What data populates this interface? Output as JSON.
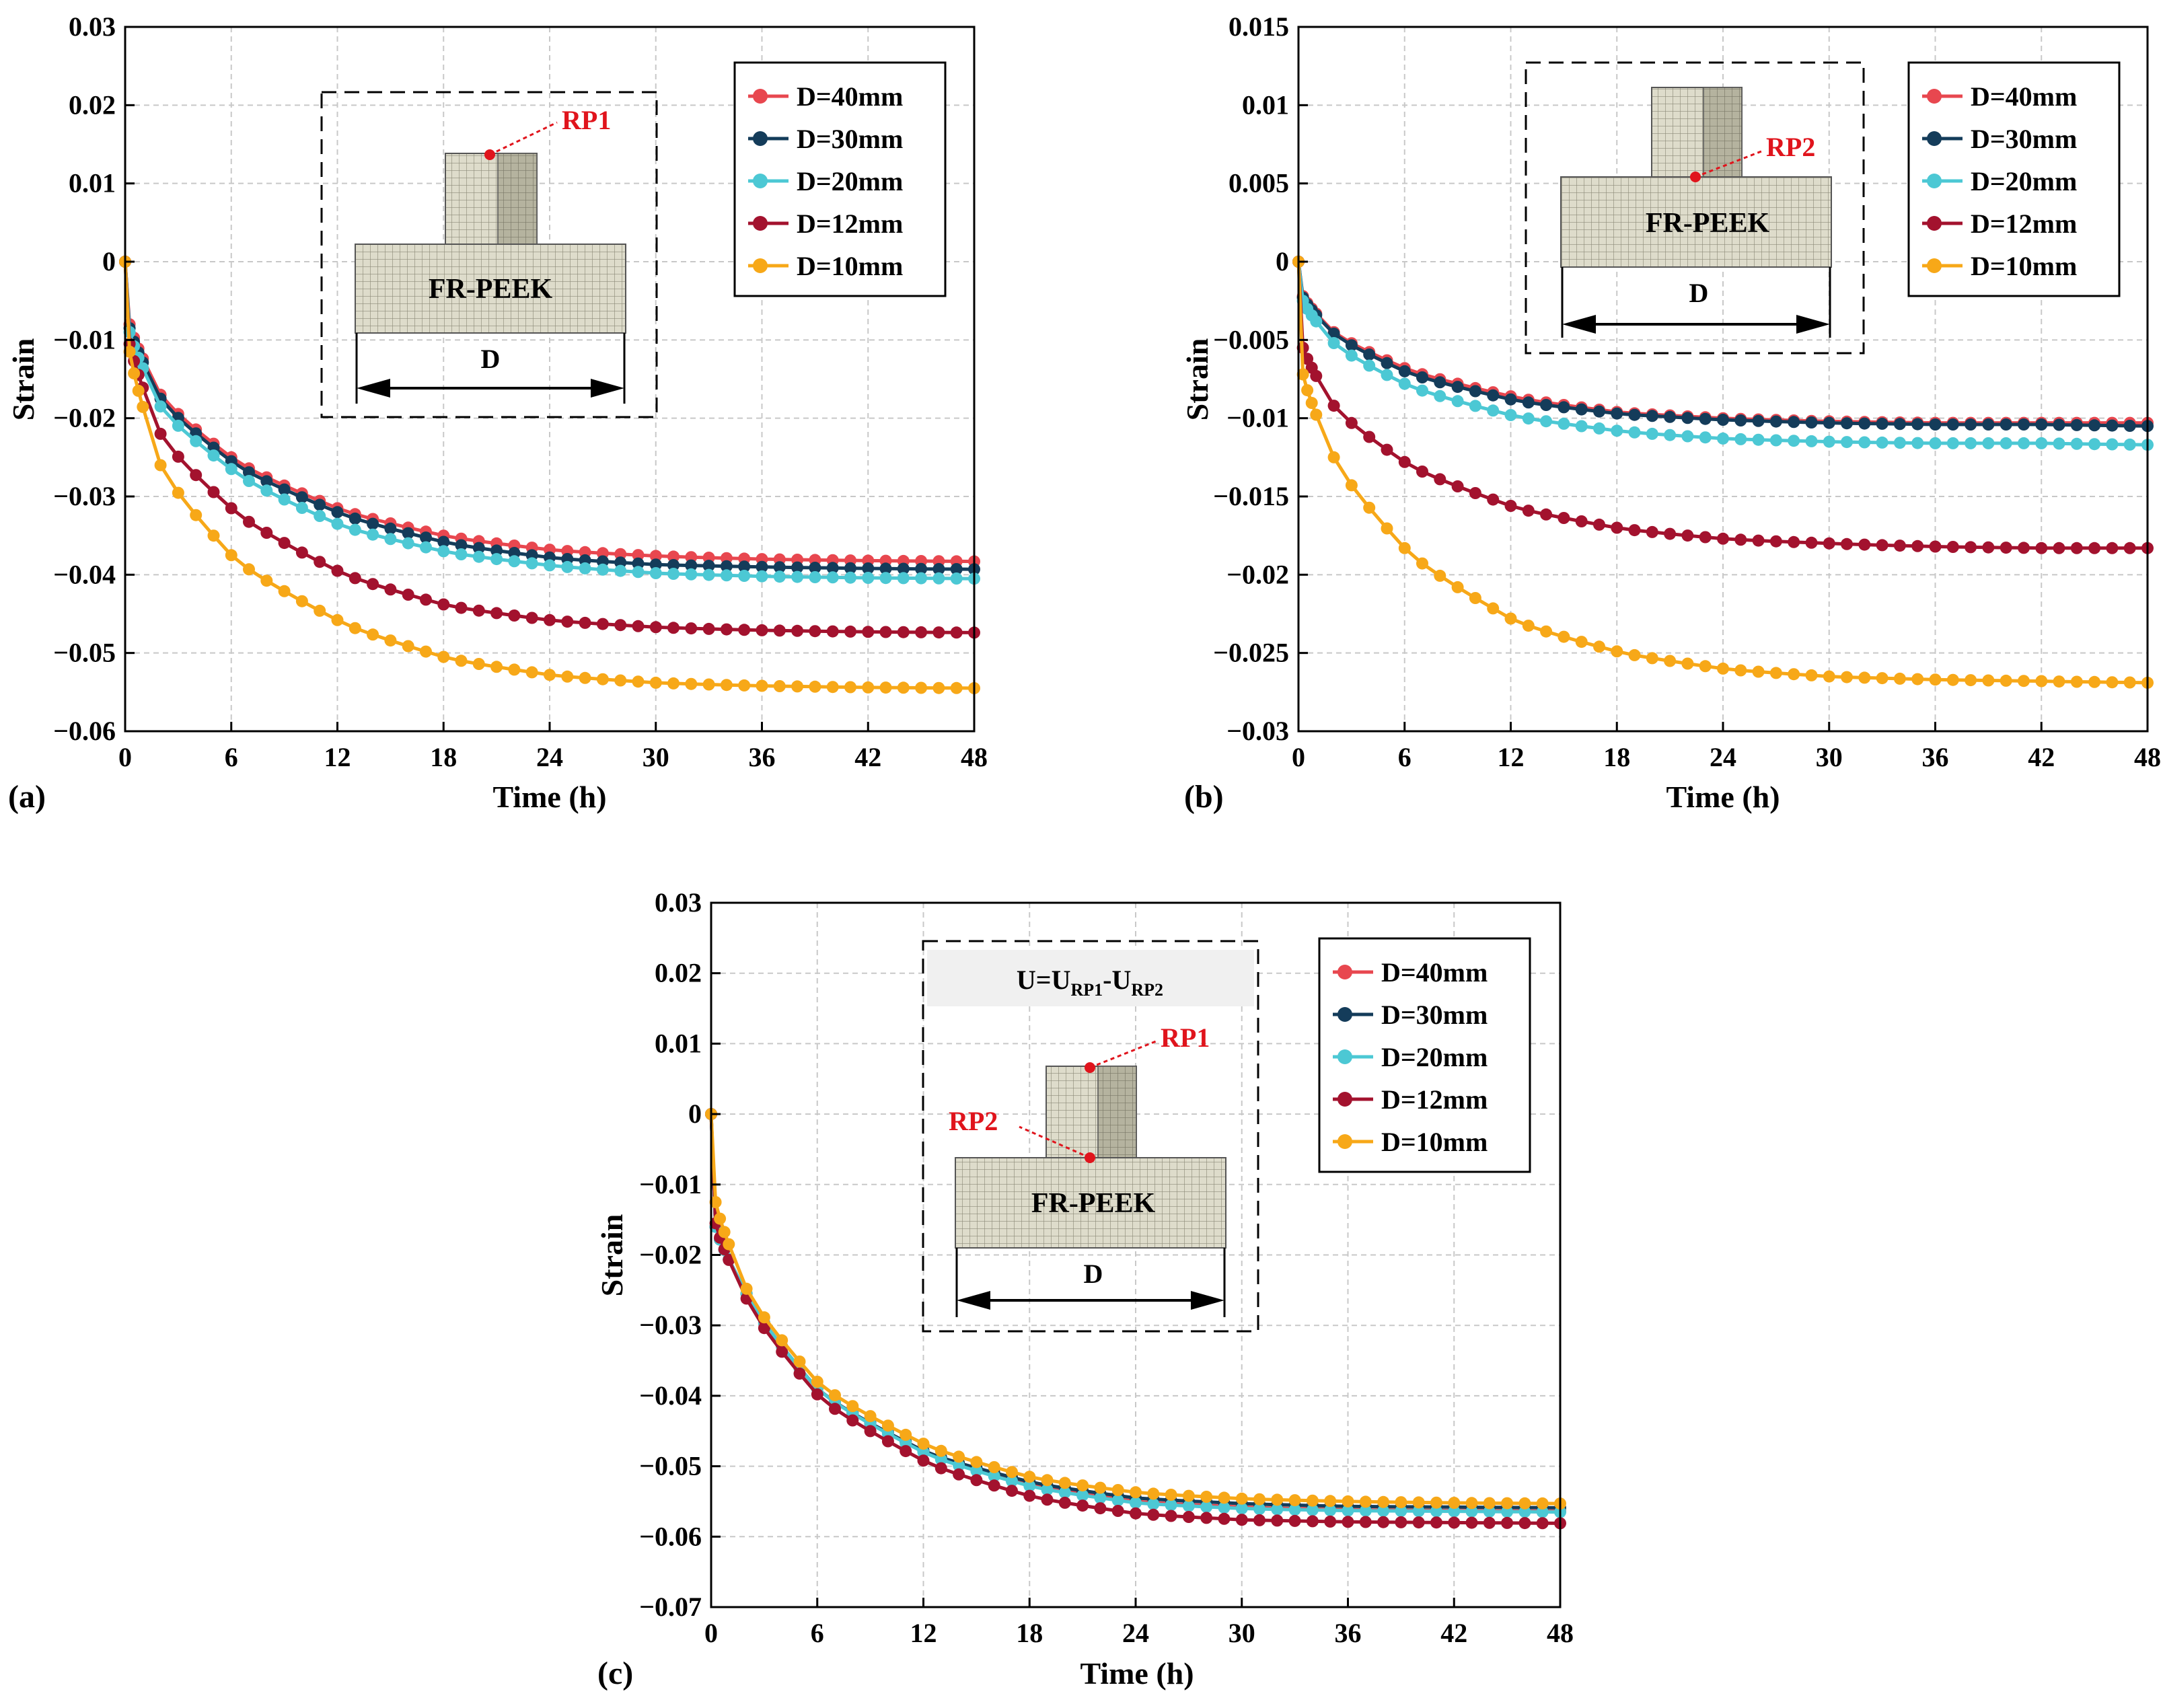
{
  "chart_data": [
    {
      "panel_label": "(a)",
      "type": "line",
      "xlabel": "Time (h)",
      "ylabel": "Strain",
      "xlim": [
        0,
        48
      ],
      "ylim": [
        -0.06,
        0.03
      ],
      "xticks": [
        0,
        6,
        12,
        18,
        24,
        30,
        36,
        42,
        48
      ],
      "xtick_labels": [
        "0",
        "6",
        "12",
        "18",
        "24",
        "30",
        "36",
        "42",
        "48"
      ],
      "yticks": [
        0.03,
        0.02,
        0.01,
        0,
        -0.01,
        -0.02,
        -0.03,
        -0.04,
        -0.05,
        -0.06
      ],
      "ytick_labels": [
        "0.03",
        "0.02",
        "0.01",
        "0",
        "−0.01",
        "−0.02",
        "−0.03",
        "−0.04",
        "−0.05",
        "−0.06"
      ],
      "grid": true,
      "legend": "top-right",
      "series": [
        {
          "name": "D=40mm",
          "color": "#e8474f",
          "points": [
            [
              0,
              0
            ],
            [
              0.25,
              -0.008
            ],
            [
              2,
              -0.017
            ],
            [
              6,
              -0.025
            ],
            [
              12,
              -0.0315
            ],
            [
              18,
              -0.035
            ],
            [
              24,
              -0.0368
            ],
            [
              30,
              -0.0376
            ],
            [
              36,
              -0.038
            ],
            [
              42,
              -0.0382
            ],
            [
              48,
              -0.0383
            ]
          ]
        },
        {
          "name": "D=30mm",
          "color": "#143c5a",
          "points": [
            [
              0,
              0
            ],
            [
              0.25,
              -0.0085
            ],
            [
              2,
              -0.0175
            ],
            [
              6,
              -0.0255
            ],
            [
              12,
              -0.032
            ],
            [
              18,
              -0.0358
            ],
            [
              24,
              -0.0378
            ],
            [
              30,
              -0.0387
            ],
            [
              36,
              -0.039
            ],
            [
              42,
              -0.0392
            ],
            [
              48,
              -0.0393
            ]
          ]
        },
        {
          "name": "D=20mm",
          "color": "#4cc8d4",
          "points": [
            [
              0,
              0
            ],
            [
              0.25,
              -0.009
            ],
            [
              2,
              -0.0185
            ],
            [
              6,
              -0.0265
            ],
            [
              12,
              -0.0335
            ],
            [
              18,
              -0.037
            ],
            [
              24,
              -0.0388
            ],
            [
              30,
              -0.0398
            ],
            [
              36,
              -0.0402
            ],
            [
              42,
              -0.0404
            ],
            [
              48,
              -0.0405
            ]
          ]
        },
        {
          "name": "D=12mm",
          "color": "#a3122e",
          "points": [
            [
              0,
              0
            ],
            [
              0.25,
              -0.0105
            ],
            [
              2,
              -0.022
            ],
            [
              6,
              -0.0315
            ],
            [
              12,
              -0.0395
            ],
            [
              18,
              -0.0438
            ],
            [
              24,
              -0.0458
            ],
            [
              30,
              -0.0467
            ],
            [
              36,
              -0.0471
            ],
            [
              42,
              -0.0473
            ],
            [
              48,
              -0.0474
            ]
          ]
        },
        {
          "name": "D=10mm",
          "color": "#f7a818",
          "points": [
            [
              0,
              0
            ],
            [
              0.25,
              -0.0115
            ],
            [
              2,
              -0.026
            ],
            [
              6,
              -0.0375
            ],
            [
              12,
              -0.0458
            ],
            [
              18,
              -0.0505
            ],
            [
              24,
              -0.0528
            ],
            [
              30,
              -0.0538
            ],
            [
              36,
              -0.0542
            ],
            [
              42,
              -0.0544
            ],
            [
              48,
              -0.0545
            ]
          ]
        }
      ],
      "inset": {
        "text": "FR-PEEK",
        "dimension_label": "D",
        "point_label": "RP1"
      }
    },
    {
      "panel_label": "(b)",
      "type": "line",
      "xlabel": "Time (h)",
      "ylabel": "Strain",
      "xlim": [
        0,
        48
      ],
      "ylim": [
        -0.03,
        0.015
      ],
      "xticks": [
        0,
        6,
        12,
        18,
        24,
        30,
        36,
        42,
        48
      ],
      "xtick_labels": [
        "0",
        "6",
        "12",
        "18",
        "24",
        "30",
        "36",
        "42",
        "48"
      ],
      "yticks": [
        0.015,
        0.01,
        0.005,
        0,
        -0.005,
        -0.01,
        -0.015,
        -0.02,
        -0.025,
        -0.03
      ],
      "ytick_labels": [
        "0.015",
        "0.01",
        "0.005",
        "0",
        "−0.005",
        "−0.01",
        "−0.015",
        "−0.02",
        "−0.025",
        "−0.03"
      ],
      "grid": true,
      "legend": "top-right",
      "series": [
        {
          "name": "D=40mm",
          "color": "#e8474f",
          "points": [
            [
              0,
              0
            ],
            [
              0.25,
              -0.0022
            ],
            [
              2,
              -0.0045
            ],
            [
              6,
              -0.0068
            ],
            [
              12,
              -0.0086
            ],
            [
              18,
              -0.0096
            ],
            [
              24,
              -0.01
            ],
            [
              30,
              -0.0102
            ],
            [
              36,
              -0.0103
            ],
            [
              42,
              -0.0103
            ],
            [
              48,
              -0.0103
            ]
          ]
        },
        {
          "name": "D=30mm",
          "color": "#143c5a",
          "points": [
            [
              0,
              0
            ],
            [
              0.25,
              -0.0023
            ],
            [
              2,
              -0.0046
            ],
            [
              6,
              -0.007
            ],
            [
              12,
              -0.0088
            ],
            [
              18,
              -0.0097
            ],
            [
              24,
              -0.0101
            ],
            [
              30,
              -0.0103
            ],
            [
              36,
              -0.0104
            ],
            [
              42,
              -0.0104
            ],
            [
              48,
              -0.0105
            ]
          ]
        },
        {
          "name": "D=20mm",
          "color": "#4cc8d4",
          "points": [
            [
              0,
              0
            ],
            [
              0.25,
              -0.0025
            ],
            [
              2,
              -0.0052
            ],
            [
              6,
              -0.0078
            ],
            [
              12,
              -0.0098
            ],
            [
              18,
              -0.0108
            ],
            [
              24,
              -0.0113
            ],
            [
              30,
              -0.0115
            ],
            [
              36,
              -0.0116
            ],
            [
              42,
              -0.0116
            ],
            [
              48,
              -0.0117
            ]
          ]
        },
        {
          "name": "D=12mm",
          "color": "#a3122e",
          "points": [
            [
              0,
              0
            ],
            [
              0.25,
              -0.0055
            ],
            [
              2,
              -0.0092
            ],
            [
              6,
              -0.0128
            ],
            [
              12,
              -0.0156
            ],
            [
              18,
              -0.017
            ],
            [
              24,
              -0.0177
            ],
            [
              30,
              -0.018
            ],
            [
              36,
              -0.0182
            ],
            [
              42,
              -0.0183
            ],
            [
              48,
              -0.0183
            ]
          ]
        },
        {
          "name": "D=10mm",
          "color": "#f7a818",
          "points": [
            [
              0,
              0
            ],
            [
              0.25,
              -0.0072
            ],
            [
              2,
              -0.0125
            ],
            [
              6,
              -0.0183
            ],
            [
              12,
              -0.0228
            ],
            [
              18,
              -0.0249
            ],
            [
              24,
              -0.026
            ],
            [
              30,
              -0.0265
            ],
            [
              36,
              -0.0267
            ],
            [
              42,
              -0.0268
            ],
            [
              48,
              -0.0269
            ]
          ]
        }
      ],
      "inset": {
        "text": "FR-PEEK",
        "dimension_label": "D",
        "point_label": "RP2"
      }
    },
    {
      "panel_label": "(c)",
      "type": "line",
      "xlabel": "Time (h)",
      "ylabel": "Strain",
      "xlim": [
        0,
        48
      ],
      "ylim": [
        -0.07,
        0.03
      ],
      "xticks": [
        0,
        6,
        12,
        18,
        24,
        30,
        36,
        42,
        48
      ],
      "xtick_labels": [
        "0",
        "6",
        "12",
        "18",
        "24",
        "30",
        "36",
        "42",
        "48"
      ],
      "yticks": [
        0.03,
        0.02,
        0.01,
        0,
        -0.01,
        -0.02,
        -0.03,
        -0.04,
        -0.05,
        -0.06,
        -0.07
      ],
      "ytick_labels": [
        "0.03",
        "0.02",
        "0.01",
        "0",
        "−0.01",
        "−0.02",
        "−0.03",
        "−0.04",
        "−0.05",
        "−0.06",
        "−0.07"
      ],
      "grid": true,
      "legend": "top-right",
      "series": [
        {
          "name": "D=40mm",
          "color": "#e8474f",
          "points": [
            [
              0,
              0
            ],
            [
              0.25,
              -0.016
            ],
            [
              2,
              -0.0255
            ],
            [
              6,
              -0.039
            ],
            [
              12,
              -0.0478
            ],
            [
              18,
              -0.0525
            ],
            [
              24,
              -0.055
            ],
            [
              30,
              -0.0558
            ],
            [
              36,
              -0.0562
            ],
            [
              42,
              -0.0563
            ],
            [
              48,
              -0.0564
            ]
          ]
        },
        {
          "name": "D=30mm",
          "color": "#143c5a",
          "points": [
            [
              0,
              0
            ],
            [
              0.25,
              -0.016
            ],
            [
              2,
              -0.0255
            ],
            [
              6,
              -0.039
            ],
            [
              12,
              -0.0478
            ],
            [
              18,
              -0.0522
            ],
            [
              24,
              -0.0545
            ],
            [
              30,
              -0.0553
            ],
            [
              36,
              -0.0557
            ],
            [
              42,
              -0.0558
            ],
            [
              48,
              -0.0559
            ]
          ]
        },
        {
          "name": "D=20mm",
          "color": "#4cc8d4",
          "points": [
            [
              0,
              0
            ],
            [
              0.25,
              -0.016
            ],
            [
              2,
              -0.0255
            ],
            [
              6,
              -0.039
            ],
            [
              12,
              -0.048
            ],
            [
              18,
              -0.0528
            ],
            [
              24,
              -0.0552
            ],
            [
              30,
              -0.056
            ],
            [
              36,
              -0.0563
            ],
            [
              42,
              -0.0564
            ],
            [
              48,
              -0.0565
            ]
          ]
        },
        {
          "name": "D=12mm",
          "color": "#a3122e",
          "points": [
            [
              0,
              0
            ],
            [
              0.25,
              -0.0155
            ],
            [
              2,
              -0.0262
            ],
            [
              6,
              -0.0398
            ],
            [
              12,
              -0.0492
            ],
            [
              18,
              -0.0542
            ],
            [
              24,
              -0.0567
            ],
            [
              30,
              -0.0576
            ],
            [
              36,
              -0.0579
            ],
            [
              42,
              -0.058
            ],
            [
              48,
              -0.0581
            ]
          ]
        },
        {
          "name": "D=10mm",
          "color": "#f7a818",
          "points": [
            [
              0,
              0
            ],
            [
              0.25,
              -0.0125
            ],
            [
              2,
              -0.0248
            ],
            [
              6,
              -0.038
            ],
            [
              12,
              -0.0468
            ],
            [
              18,
              -0.0515
            ],
            [
              24,
              -0.0537
            ],
            [
              30,
              -0.0546
            ],
            [
              36,
              -0.055
            ],
            [
              42,
              -0.0552
            ],
            [
              48,
              -0.0553
            ]
          ]
        }
      ],
      "inset": {
        "text": "FR-PEEK",
        "dimension_label": "D",
        "point_labels": [
          "RP1",
          "RP2"
        ],
        "formula": {
          "main": "U=U",
          "sub1": "RP1",
          "dash": "-U",
          "sub2": "RP2"
        }
      }
    }
  ]
}
